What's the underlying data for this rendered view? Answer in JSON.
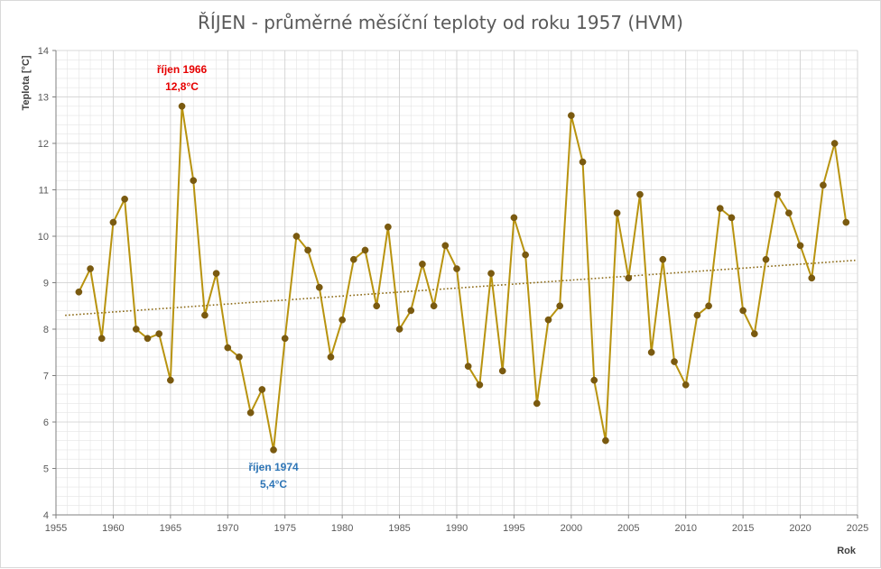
{
  "chart_data": {
    "type": "line",
    "title": "ŘÍJEN - průměrné měsíční teploty od roku 1957 (HVM)",
    "xlabel": "Rok",
    "ylabel": "Teplota [°C]",
    "xlim": [
      1955,
      2025
    ],
    "ylim": [
      4,
      14
    ],
    "xticks": [
      1955,
      1960,
      1965,
      1970,
      1975,
      1980,
      1985,
      1990,
      1995,
      2000,
      2005,
      2010,
      2015,
      2020,
      2025
    ],
    "yticks": [
      4,
      5,
      6,
      7,
      8,
      9,
      10,
      11,
      12,
      13,
      14
    ],
    "grid": true,
    "colors": {
      "series": "#B8930F",
      "marker": "#7A5A10",
      "trend": "#8B6914",
      "max": "#E60000",
      "min": "#2E75B6",
      "grid": "#E4E4E4"
    },
    "series": [
      {
        "x": [
          1957,
          1958,
          1959,
          1960,
          1961,
          1962,
          1963,
          1964,
          1965,
          1966,
          1967,
          1968,
          1969,
          1970,
          1971,
          1972,
          1973,
          1974,
          1975,
          1976,
          1977,
          1978,
          1979,
          1980,
          1981,
          1982,
          1983,
          1984,
          1985,
          1986,
          1987,
          1988,
          1989,
          1990,
          1991,
          1992,
          1993,
          1994,
          1995,
          1996,
          1997,
          1998,
          1999,
          2000,
          2001,
          2002,
          2003,
          2004,
          2005,
          2006,
          2007,
          2008,
          2009,
          2010,
          2011,
          2012,
          2013,
          2014,
          2015,
          2016,
          2017,
          2018,
          2019,
          2020,
          2021,
          2022,
          2023,
          2024
        ],
        "values": [
          8.8,
          9.3,
          7.8,
          10.3,
          10.8,
          8.0,
          7.8,
          7.9,
          6.9,
          12.8,
          11.2,
          8.3,
          9.2,
          7.6,
          7.4,
          6.2,
          6.7,
          5.4,
          7.8,
          10.0,
          9.7,
          8.9,
          7.4,
          8.2,
          9.5,
          9.7,
          8.5,
          10.2,
          8.0,
          8.4,
          9.4,
          8.5,
          9.8,
          9.3,
          7.2,
          6.8,
          9.2,
          7.1,
          10.4,
          9.6,
          6.4,
          8.2,
          8.5,
          12.6,
          11.6,
          6.9,
          5.6,
          10.5,
          9.1,
          10.9,
          7.5,
          9.5,
          7.3,
          6.8,
          8.3,
          8.5,
          10.6,
          10.4,
          8.4,
          7.9,
          9.5,
          10.9,
          10.5,
          9.8,
          9.1,
          11.1,
          12.0,
          10.3
        ]
      }
    ],
    "trendline": {
      "type": "linear",
      "style": "dotted"
    },
    "annotations": [
      {
        "kind": "max",
        "line1": "říjen 1966",
        "line2": "12,8°C",
        "x": 1966,
        "y": 12.8
      },
      {
        "kind": "min",
        "line1": "říjen 1974",
        "line2": "5,4°C",
        "x": 1974,
        "y": 5.4
      }
    ]
  }
}
